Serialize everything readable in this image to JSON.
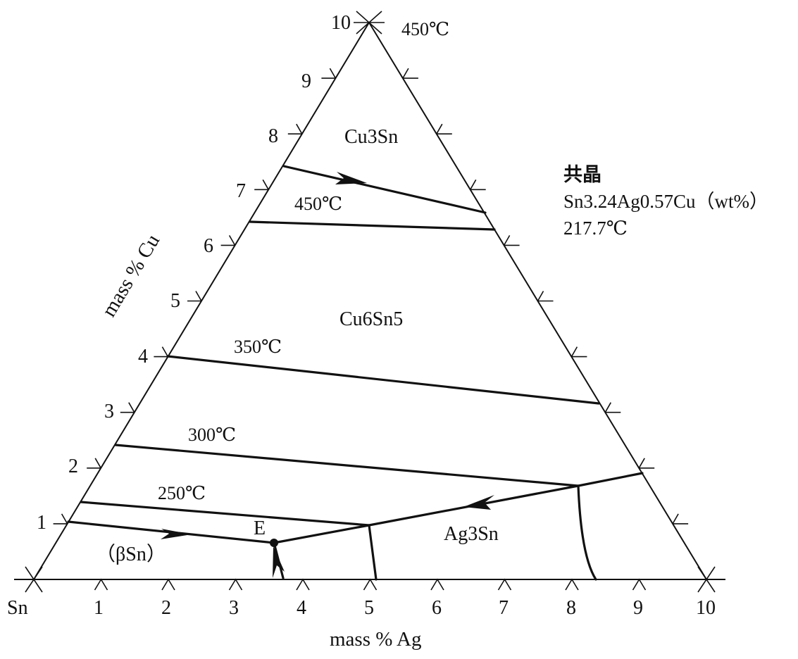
{
  "axes": {
    "bottom": {
      "title": "mass % Ag",
      "origin_label": "Sn",
      "tick_labels": [
        "1",
        "2",
        "3",
        "4",
        "5",
        "6",
        "7",
        "8",
        "9",
        "10"
      ]
    },
    "left": {
      "title": "mass % Cu",
      "tick_labels": [
        "1",
        "2",
        "3",
        "4",
        "5",
        "6",
        "7",
        "8",
        "9",
        "10"
      ]
    },
    "apex_temperature": "450℃"
  },
  "phases": {
    "cu3sn": "Cu3Sn",
    "cu6sn5": "Cu6Sn5",
    "ag3sn": "Ag3Sn",
    "beta_sn": "（βSn）"
  },
  "isotherms": {
    "t450": "450℃",
    "t350": "350℃",
    "t300": "300℃",
    "t250": "250℃"
  },
  "eutectic": {
    "point_label": "E",
    "title": "共晶",
    "composition": "Sn3.24Ag0.57Cu（wt%）",
    "temperature": "217.7℃"
  }
}
